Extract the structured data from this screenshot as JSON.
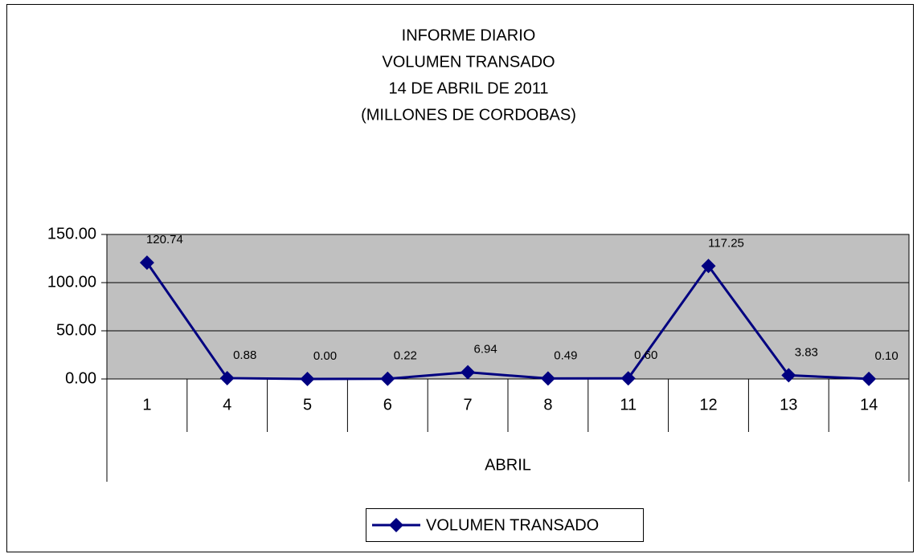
{
  "chart_data": {
    "type": "line",
    "title": [
      "INFORME DIARIO",
      "VOLUMEN TRANSADO",
      "14  DE ABRIL  DE  2011",
      "(MILLONES DE CORDOBAS)"
    ],
    "categories": [
      "1",
      "4",
      "5",
      "6",
      "7",
      "8",
      "11",
      "12",
      "13",
      "14"
    ],
    "category_group": "ABRIL",
    "series": [
      {
        "name": "VOLUMEN TRANSADO",
        "color": "#000080",
        "values": [
          120.74,
          0.88,
          0.0,
          0.22,
          6.94,
          0.49,
          0.6,
          117.25,
          3.83,
          0.1
        ],
        "value_labels": [
          "120.74",
          "0.88",
          "0.00",
          "0.22",
          "6.94",
          "0.49",
          "0.60",
          "117.25",
          "3.83",
          "0.10"
        ]
      }
    ],
    "ylim": [
      0,
      150
    ],
    "yticks": [
      {
        "value": 0,
        "label": "0.00"
      },
      {
        "value": 50,
        "label": "50.00"
      },
      {
        "value": 100,
        "label": "100.00"
      },
      {
        "value": 150,
        "label": "150.00"
      }
    ],
    "grid": true,
    "plot_background": "#c0c0c0",
    "legend": "bottom"
  }
}
